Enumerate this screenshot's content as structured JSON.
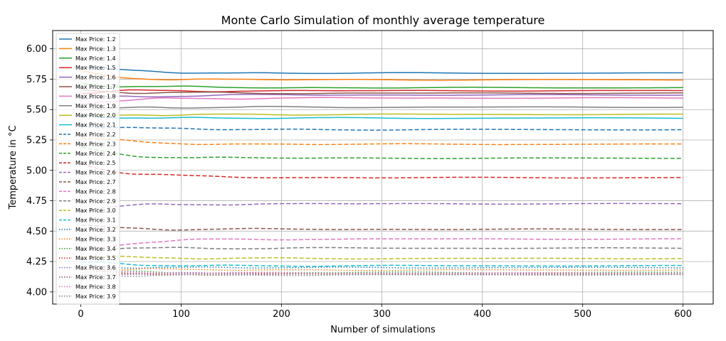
{
  "chart_data": {
    "type": "line",
    "title": "Monte Carlo Simulation of monthly average temperature",
    "xlabel": "Number of simulations",
    "ylabel": "Temperature in °C",
    "xlim": [
      -28,
      630
    ],
    "ylim": [
      3.9,
      6.15
    ],
    "xticks": [
      0,
      100,
      200,
      300,
      400,
      500,
      600
    ],
    "yticks": [
      4.0,
      4.25,
      4.5,
      4.75,
      5.0,
      5.25,
      5.5,
      5.75,
      6.0
    ],
    "ytick_labels": [
      "4.00",
      "4.25",
      "4.50",
      "4.75",
      "5.00",
      "5.25",
      "5.50",
      "5.75",
      "6.00"
    ],
    "grid": true,
    "legend_position": "upper-left",
    "x_start": 1,
    "x_end": 600,
    "series": [
      {
        "name": "Max Price: 1.2",
        "color": "#1f77b4",
        "dash": "solid",
        "start": 5.85,
        "final": 5.8
      },
      {
        "name": "Max Price: 1.3",
        "color": "#ff7f0e",
        "dash": "solid",
        "start": 5.8,
        "final": 5.745
      },
      {
        "name": "Max Price: 1.4",
        "color": "#2ca02c",
        "dash": "solid",
        "start": 5.72,
        "final": 5.68
      },
      {
        "name": "Max Price: 1.5",
        "color": "#d62728",
        "dash": "solid",
        "start": 5.64,
        "final": 5.655
      },
      {
        "name": "Max Price: 1.6",
        "color": "#9467bd",
        "dash": "solid",
        "start": 5.58,
        "final": 5.62
      },
      {
        "name": "Max Price: 1.7",
        "color": "#8c564b",
        "dash": "solid",
        "start": 5.66,
        "final": 5.635
      },
      {
        "name": "Max Price: 1.8",
        "color": "#e377c2",
        "dash": "solid",
        "start": 5.55,
        "final": 5.595
      },
      {
        "name": "Max Price: 1.9",
        "color": "#7f7f7f",
        "dash": "solid",
        "start": 5.5,
        "final": 5.52
      },
      {
        "name": "Max Price: 2.0",
        "color": "#bcbd22",
        "dash": "solid",
        "start": 5.44,
        "final": 5.46
      },
      {
        "name": "Max Price: 2.1",
        "color": "#17becf",
        "dash": "solid",
        "start": 5.45,
        "final": 5.43
      },
      {
        "name": "Max Price: 2.2",
        "color": "#1f77b4",
        "dash": "dashed",
        "start": 5.38,
        "final": 5.335
      },
      {
        "name": "Max Price: 2.3",
        "color": "#ff7f0e",
        "dash": "dashed",
        "start": 5.27,
        "final": 5.215
      },
      {
        "name": "Max Price: 2.4",
        "color": "#2ca02c",
        "dash": "dashed",
        "start": 5.18,
        "final": 5.1
      },
      {
        "name": "Max Price: 2.5",
        "color": "#d62728",
        "dash": "dashed",
        "start": 5.06,
        "final": 4.94
      },
      {
        "name": "Max Price: 2.6",
        "color": "#9467bd",
        "dash": "dashed",
        "start": 4.67,
        "final": 4.725
      },
      {
        "name": "Max Price: 2.7",
        "color": "#8c564b",
        "dash": "dashed",
        "start": 4.54,
        "final": 4.515
      },
      {
        "name": "Max Price: 2.8",
        "color": "#e377c2",
        "dash": "dashed",
        "start": 4.33,
        "final": 4.435
      },
      {
        "name": "Max Price: 2.9",
        "color": "#7f7f7f",
        "dash": "dashed",
        "start": 4.36,
        "final": 4.36
      },
      {
        "name": "Max Price: 3.0",
        "color": "#bcbd22",
        "dash": "dashed",
        "start": 4.3,
        "final": 4.275
      },
      {
        "name": "Max Price: 3.1",
        "color": "#17becf",
        "dash": "dashed",
        "start": 4.24,
        "final": 4.215
      },
      {
        "name": "Max Price: 3.2",
        "color": "#1f77b4",
        "dash": "dotted",
        "start": 4.22,
        "final": 4.2
      },
      {
        "name": "Max Price: 3.3",
        "color": "#ff7f0e",
        "dash": "dotted",
        "start": 4.2,
        "final": 4.18
      },
      {
        "name": "Max Price: 3.4",
        "color": "#2ca02c",
        "dash": "dotted",
        "start": 4.16,
        "final": 4.16
      },
      {
        "name": "Max Price: 3.5",
        "color": "#d62728",
        "dash": "dotted",
        "start": 4.17,
        "final": 4.15
      },
      {
        "name": "Max Price: 3.6",
        "color": "#9467bd",
        "dash": "dotted",
        "start": 4.15,
        "final": 4.15
      },
      {
        "name": "Max Price: 3.7",
        "color": "#8c564b",
        "dash": "dotted",
        "start": 4.14,
        "final": 4.145
      },
      {
        "name": "Max Price: 3.8",
        "color": "#e377c2",
        "dash": "dotted",
        "start": 4.18,
        "final": 4.155
      },
      {
        "name": "Max Price: 3.9",
        "color": "#7f7f7f",
        "dash": "dotted",
        "start": 4.13,
        "final": 4.14
      }
    ]
  }
}
